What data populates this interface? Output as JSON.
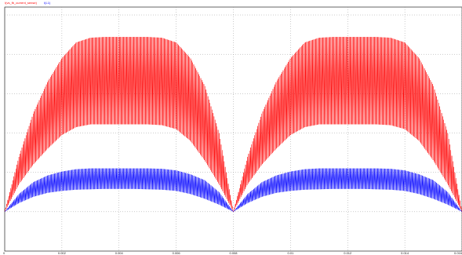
{
  "chart_data": {
    "type": "line",
    "title": "",
    "xlabel": "",
    "ylabel": "",
    "grid": true,
    "legend_placement": "top-left",
    "xlim": [
      0,
      0.016
    ],
    "ylim": [
      -1,
      5.2
    ],
    "x_ticks": [
      0,
      0.002,
      0.004,
      0.006,
      0.008,
      0.01,
      0.012,
      0.014,
      0.016
    ],
    "x_tick_labels": [
      "0",
      "0.002",
      "0.004",
      "0.006",
      "0.008",
      "0.01",
      "0.012",
      "0.014",
      "0.016"
    ],
    "y_ticks": [
      0,
      1,
      2,
      3,
      4,
      5
    ],
    "y_tick_labels": [
      "",
      "",
      "",
      "",
      "",
      ""
    ],
    "period": 0.008,
    "series": [
      {
        "name": "I(vs_fb_current_sense)",
        "color": "#ff0000",
        "envelope_x": [
          0,
          0.0005,
          0.001,
          0.0015,
          0.002,
          0.0025,
          0.003,
          0.0035,
          0.004,
          0.0045,
          0.005,
          0.0055,
          0.006,
          0.0065,
          0.007,
          0.0075,
          0.008
        ],
        "upper": [
          0.0,
          1.4,
          2.5,
          3.3,
          3.9,
          4.3,
          4.42,
          4.44,
          4.44,
          4.44,
          4.44,
          4.42,
          4.3,
          3.9,
          3.2,
          2.0,
          0.0
        ],
        "lower": [
          0.0,
          0.7,
          1.2,
          1.6,
          1.95,
          2.15,
          2.22,
          2.22,
          2.22,
          2.22,
          2.22,
          2.2,
          2.1,
          1.8,
          1.3,
          0.7,
          0.0
        ]
      },
      {
        "name": "I(L1)",
        "color": "#0000ff",
        "envelope_x": [
          0,
          0.0005,
          0.001,
          0.0015,
          0.002,
          0.0025,
          0.003,
          0.0035,
          0.004,
          0.0045,
          0.005,
          0.0055,
          0.006,
          0.0065,
          0.007,
          0.0075,
          0.008
        ],
        "upper": [
          0.0,
          0.45,
          0.75,
          0.92,
          1.02,
          1.08,
          1.1,
          1.1,
          1.1,
          1.1,
          1.1,
          1.09,
          1.05,
          0.95,
          0.8,
          0.5,
          0.0
        ],
        "lower": [
          0.0,
          0.22,
          0.38,
          0.48,
          0.53,
          0.56,
          0.57,
          0.58,
          0.58,
          0.58,
          0.57,
          0.56,
          0.53,
          0.45,
          0.33,
          0.18,
          0.0
        ]
      }
    ]
  }
}
